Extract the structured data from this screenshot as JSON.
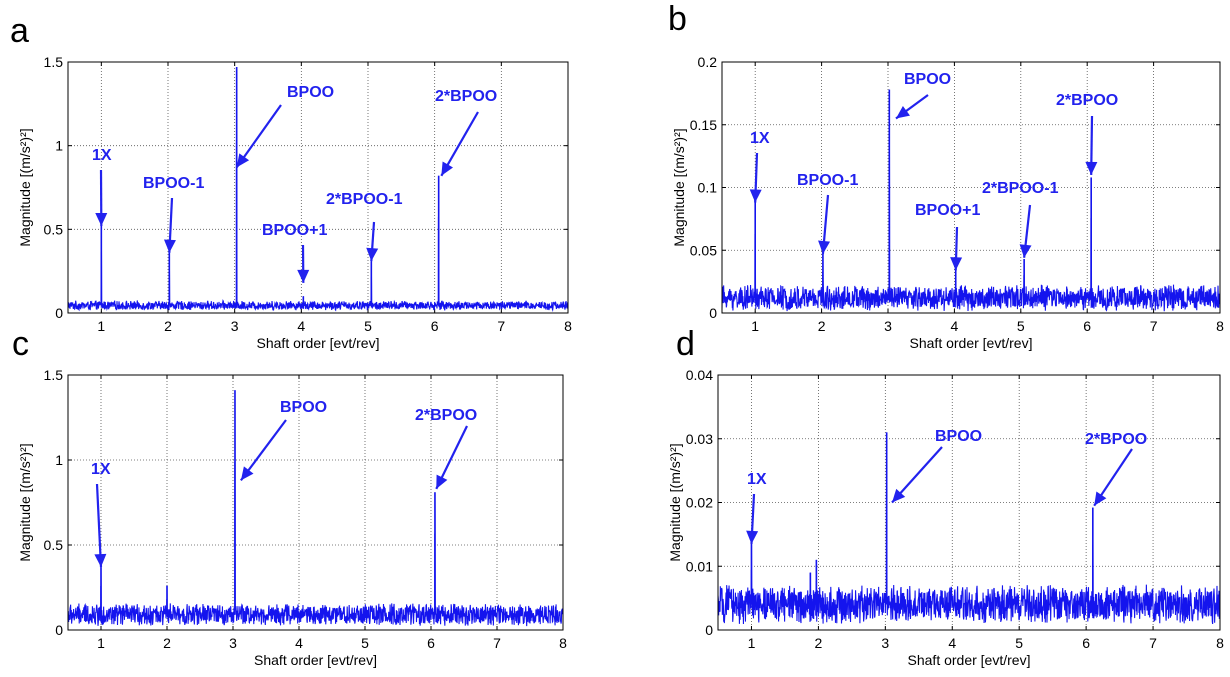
{
  "chart_data": [
    {
      "panel": "a",
      "type": "line",
      "xlabel": "Shaft order [evt/rev]",
      "ylabel": "Magnitude [(m/s²)²]",
      "xlim": [
        0.5,
        8
      ],
      "ylim": [
        0,
        1.5
      ],
      "xticks": [
        "1",
        "2",
        "3",
        "4",
        "5",
        "6",
        "7",
        "8"
      ],
      "yticks": [
        "0",
        "0.5",
        "1",
        "1.5"
      ],
      "grid": true,
      "color": "#1414ee",
      "noise_floor": 0.045,
      "noise_amp": 0.03,
      "peaks": [
        {
          "x": 1.0,
          "y": 0.52
        },
        {
          "x": 2.02,
          "y": 0.36
        },
        {
          "x": 3.03,
          "y": 1.47
        },
        {
          "x": 4.03,
          "y": 0.1
        },
        {
          "x": 5.05,
          "y": 0.31
        },
        {
          "x": 6.06,
          "y": 0.82
        }
      ],
      "annotations": [
        {
          "text": "1X",
          "target_x": 1.0,
          "target_y": 0.52
        },
        {
          "text": "BPOO-1",
          "target_x": 2.02,
          "target_y": 0.36
        },
        {
          "text": "BPOO",
          "target_x": 3.03,
          "target_y": 0.87
        },
        {
          "text": "BPOO+1",
          "target_x": 4.03,
          "target_y": 0.18
        },
        {
          "text": "2*BPOO-1",
          "target_x": 5.05,
          "target_y": 0.31
        },
        {
          "text": "2*BPOO",
          "target_x": 6.1,
          "target_y": 0.82
        }
      ]
    },
    {
      "panel": "b",
      "type": "line",
      "xlabel": "Shaft order [evt/rev]",
      "ylabel": "Magnitude [(m/s²)²]",
      "xlim": [
        0.5,
        8
      ],
      "ylim": [
        0,
        0.2
      ],
      "xticks": [
        "1",
        "2",
        "3",
        "4",
        "5",
        "6",
        "7",
        "8"
      ],
      "yticks": [
        "0",
        "0.05",
        "0.1",
        "0.15",
        "0.2"
      ],
      "grid": true,
      "color": "#1414ee",
      "noise_floor": 0.012,
      "noise_amp": 0.011,
      "peaks": [
        {
          "x": 1.0,
          "y": 0.09
        },
        {
          "x": 2.02,
          "y": 0.047
        },
        {
          "x": 3.02,
          "y": 0.178
        },
        {
          "x": 4.02,
          "y": 0.035
        },
        {
          "x": 5.05,
          "y": 0.043
        },
        {
          "x": 6.06,
          "y": 0.108
        }
      ],
      "annotations": [
        {
          "text": "1X",
          "target_x": 1.0,
          "target_y": 0.088
        },
        {
          "text": "BPOO-1",
          "target_x": 2.02,
          "target_y": 0.047
        },
        {
          "text": "BPOO",
          "target_x": 3.12,
          "target_y": 0.155
        },
        {
          "text": "BPOO+1",
          "target_x": 4.02,
          "target_y": 0.034
        },
        {
          "text": "2*BPOO-1",
          "target_x": 5.05,
          "target_y": 0.044
        },
        {
          "text": "2*BPOO",
          "target_x": 6.06,
          "target_y": 0.11
        }
      ]
    },
    {
      "panel": "c",
      "type": "line",
      "xlabel": "Shaft order [evt/rev]",
      "ylabel": "Magnitude [(m/s²)²]",
      "xlim": [
        0.5,
        8
      ],
      "ylim": [
        0,
        1.5
      ],
      "xticks": [
        "1",
        "2",
        "3",
        "4",
        "5",
        "6",
        "7",
        "8"
      ],
      "yticks": [
        "0",
        "0.5",
        "1",
        "1.5"
      ],
      "grid": true,
      "color": "#1414ee",
      "noise_floor": 0.09,
      "noise_amp": 0.07,
      "peaks": [
        {
          "x": 1.0,
          "y": 0.37
        },
        {
          "x": 2.0,
          "y": 0.26
        },
        {
          "x": 3.03,
          "y": 1.41
        },
        {
          "x": 6.06,
          "y": 0.81
        }
      ],
      "annotations": [
        {
          "text": "1X",
          "target_x": 1.0,
          "target_y": 0.37
        },
        {
          "text": "BPOO",
          "target_x": 3.12,
          "target_y": 0.88
        },
        {
          "text": "2*BPOO",
          "target_x": 6.08,
          "target_y": 0.83
        }
      ]
    },
    {
      "panel": "d",
      "type": "line",
      "xlabel": "Shaft order [evt/rev]",
      "ylabel": "Magnitude [(m/s²)²]",
      "xlim": [
        0.5,
        8
      ],
      "ylim": [
        0,
        0.04
      ],
      "xticks": [
        "1",
        "2",
        "3",
        "4",
        "5",
        "6",
        "7",
        "8"
      ],
      "yticks": [
        "0",
        "0.01",
        "0.02",
        "0.03",
        "0.04"
      ],
      "grid": true,
      "color": "#1414ee",
      "noise_floor": 0.004,
      "noise_amp": 0.0032,
      "peaks": [
        {
          "x": 1.0,
          "y": 0.0135
        },
        {
          "x": 1.88,
          "y": 0.009
        },
        {
          "x": 1.97,
          "y": 0.011
        },
        {
          "x": 3.02,
          "y": 0.031
        },
        {
          "x": 6.1,
          "y": 0.0192
        }
      ],
      "annotations": [
        {
          "text": "1X",
          "target_x": 1.0,
          "target_y": 0.0135
        },
        {
          "text": "BPOO",
          "target_x": 3.1,
          "target_y": 0.02
        },
        {
          "text": "2*BPOO",
          "target_x": 6.12,
          "target_y": 0.0195
        }
      ]
    }
  ]
}
